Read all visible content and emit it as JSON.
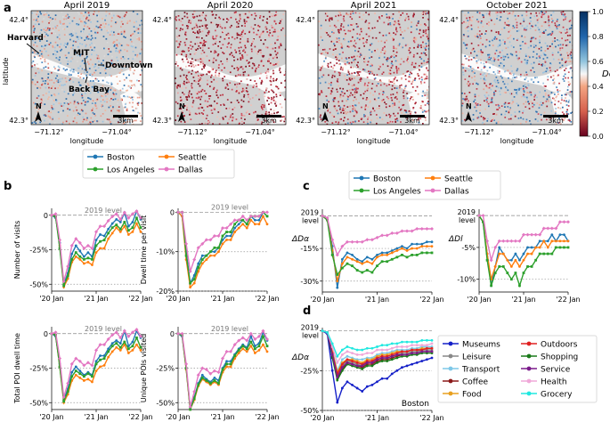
{
  "panel_letters": {
    "a": "a",
    "b": "b",
    "c": "c",
    "d": "d"
  },
  "maps": {
    "titles": [
      "April 2019",
      "April 2020",
      "April 2021",
      "October 2021"
    ],
    "lat_ticks": [
      "42.4°",
      "42.3°"
    ],
    "lon_ticks": [
      "−71.12°",
      "−71.04°"
    ],
    "xlabel": "longitude",
    "ylabel": "latitude",
    "scale_label": "3km",
    "north_label": "N",
    "annotations": {
      "harvard": "Harvard",
      "mit": "MIT",
      "downtown": "Downtown",
      "back_bay": "Back Bay"
    },
    "colorbar": {
      "label": "Dα",
      "ticks": [
        "1.0",
        "0.8",
        "0.6",
        "0.4",
        "0.2",
        "0.0"
      ]
    }
  },
  "colors": {
    "Boston": "#1f77b4",
    "Seattle": "#ff7f0e",
    "Los Angeles": "#2ca02c",
    "Dallas": "#e377c2"
  },
  "legend_b": [
    "Boston",
    "Seattle",
    "Los Angeles",
    "Dallas"
  ],
  "legend_c": [
    "Boston",
    "Seattle",
    "Los Angeles",
    "Dallas"
  ],
  "x_ticks": [
    "'20 Jan",
    "'21 Jan",
    "'22 Jan"
  ],
  "ref_label": "2019 level",
  "chart_data": [
    {
      "id": "b1",
      "type": "line",
      "ylabel": "Number of visits",
      "yticks": [
        "0",
        "-25%",
        "-50%"
      ],
      "ylim": [
        -55,
        5
      ],
      "reference": "2019 level",
      "series": [
        {
          "name": "Boston",
          "values": [
            0,
            -2,
            -20,
            -50,
            -42,
            -28,
            -22,
            -26,
            -30,
            -27,
            -30,
            -18,
            -14,
            -15,
            -10,
            -6,
            -3,
            -5,
            2,
            -8,
            -5,
            3,
            -3
          ]
        },
        {
          "name": "Seattle",
          "values": [
            0,
            -1,
            -22,
            -52,
            -46,
            -34,
            -30,
            -32,
            -35,
            -34,
            -36,
            -27,
            -24,
            -24,
            -17,
            -13,
            -9,
            -12,
            -8,
            -14,
            -12,
            -6,
            -12
          ]
        },
        {
          "name": "Los Angeles",
          "values": [
            0,
            -1,
            -24,
            -51,
            -44,
            -32,
            -27,
            -30,
            -32,
            -31,
            -32,
            -22,
            -19,
            -18,
            -13,
            -9,
            -7,
            -10,
            -5,
            -11,
            -9,
            -2,
            -9
          ]
        },
        {
          "name": "Dallas",
          "values": [
            0,
            1,
            -18,
            -48,
            -37,
            -22,
            -17,
            -20,
            -24,
            -22,
            -24,
            -12,
            -8,
            -8,
            -4,
            -1,
            1,
            -3,
            2,
            -2,
            1,
            3,
            -2
          ]
        }
      ]
    },
    {
      "id": "b2",
      "type": "line",
      "ylabel": "Dwell time per visit",
      "yticks": [
        "0",
        "-10%",
        "-20%"
      ],
      "ylim": [
        -20,
        1
      ],
      "reference": "2019 level",
      "series": [
        {
          "name": "Boston",
          "values": [
            0,
            -1,
            -10,
            -18,
            -16,
            -13,
            -11,
            -11,
            -10,
            -10,
            -9,
            -7,
            -6,
            -6,
            -4,
            -3,
            -2,
            -3,
            -1,
            -2,
            -2,
            0,
            -1
          ]
        },
        {
          "name": "Seattle",
          "values": [
            0,
            -1,
            -12,
            -19,
            -18,
            -15,
            -13,
            -12,
            -11,
            -11,
            -10,
            -8,
            -7,
            -7,
            -5,
            -4,
            -3,
            -4,
            -2,
            -3,
            -3,
            -1,
            -3
          ]
        },
        {
          "name": "Los Angeles",
          "values": [
            0,
            0,
            -11,
            -18,
            -17,
            -14,
            -12,
            -11,
            -10,
            -9,
            -9,
            -6,
            -5,
            -5,
            -3,
            -2,
            -2,
            -3,
            -1,
            -1,
            -1,
            0,
            -1
          ]
        },
        {
          "name": "Dallas",
          "values": [
            0,
            0,
            -8,
            -15,
            -12,
            -9,
            -8,
            -7,
            -7,
            -6,
            -6,
            -4,
            -4,
            -3,
            -2,
            -2,
            -1,
            -2,
            -1,
            -1,
            -1,
            0,
            0
          ]
        }
      ]
    },
    {
      "id": "b3",
      "type": "line",
      "ylabel": "Total POI dwell time",
      "yticks": [
        "0",
        "-25%",
        "-50%"
      ],
      "ylim": [
        -55,
        5
      ],
      "reference": "2019 level",
      "series": [
        {
          "name": "Boston",
          "values": [
            0,
            -2,
            -22,
            -48,
            -40,
            -28,
            -24,
            -27,
            -30,
            -28,
            -30,
            -20,
            -16,
            -16,
            -11,
            -7,
            -5,
            -7,
            2,
            -9,
            -6,
            2,
            -3
          ]
        },
        {
          "name": "Seattle",
          "values": [
            0,
            -1,
            -24,
            -50,
            -44,
            -34,
            -30,
            -32,
            -34,
            -33,
            -35,
            -27,
            -24,
            -23,
            -17,
            -13,
            -10,
            -12,
            -8,
            -14,
            -12,
            -8,
            -12
          ]
        },
        {
          "name": "Los Angeles",
          "values": [
            0,
            -1,
            -24,
            -49,
            -42,
            -31,
            -27,
            -29,
            -31,
            -29,
            -31,
            -22,
            -19,
            -18,
            -13,
            -9,
            -7,
            -10,
            -6,
            -11,
            -9,
            -3,
            -10
          ]
        },
        {
          "name": "Dallas",
          "values": [
            0,
            1,
            -18,
            -46,
            -36,
            -22,
            -18,
            -20,
            -23,
            -21,
            -23,
            -12,
            -8,
            -8,
            -4,
            -1,
            1,
            -3,
            2,
            -2,
            1,
            3,
            -2
          ]
        }
      ]
    },
    {
      "id": "b4",
      "type": "line",
      "ylabel": "Unique POIs visited",
      "yticks": [
        "0",
        "-25%",
        "-50%"
      ],
      "ylim": [
        -55,
        5
      ],
      "reference": "2019 level",
      "series": [
        {
          "name": "Boston",
          "values": [
            0,
            -2,
            -25,
            -54,
            -46,
            -36,
            -30,
            -33,
            -35,
            -32,
            -34,
            -25,
            -20,
            -20,
            -15,
            -11,
            -8,
            -10,
            -2,
            -9,
            -7,
            1,
            -5
          ]
        },
        {
          "name": "Seattle",
          "values": [
            0,
            -1,
            -26,
            -55,
            -48,
            -38,
            -33,
            -35,
            -37,
            -35,
            -37,
            -28,
            -24,
            -24,
            -18,
            -14,
            -11,
            -13,
            -9,
            -14,
            -12,
            -8,
            -13
          ]
        },
        {
          "name": "Los Angeles",
          "values": [
            0,
            -1,
            -25,
            -55,
            -47,
            -37,
            -32,
            -34,
            -36,
            -34,
            -36,
            -26,
            -22,
            -22,
            -16,
            -12,
            -9,
            -11,
            -6,
            -11,
            -9,
            -2,
            -9
          ]
        },
        {
          "name": "Dallas",
          "values": [
            0,
            0,
            -22,
            -53,
            -42,
            -30,
            -25,
            -26,
            -29,
            -27,
            -28,
            -18,
            -13,
            -13,
            -8,
            -5,
            -3,
            -5,
            0,
            -4,
            -2,
            2,
            -4
          ]
        }
      ]
    },
    {
      "id": "c1",
      "type": "line",
      "ylabel": "ΔDα",
      "yticks": [
        "2019 level",
        "-15%",
        "-30%"
      ],
      "ylim": [
        -35,
        3
      ],
      "reference": "2019 level",
      "series": [
        {
          "name": "Boston",
          "values": [
            0,
            -2,
            -14,
            -33,
            -20,
            -17,
            -18,
            -20,
            -21,
            -19,
            -20,
            -18,
            -17,
            -17,
            -16,
            -15,
            -14,
            -15,
            -13,
            -13,
            -13,
            -12,
            -12
          ]
        },
        {
          "name": "Seattle",
          "values": [
            0,
            -2,
            -16,
            -30,
            -22,
            -19,
            -20,
            -21,
            -22,
            -21,
            -22,
            -19,
            -18,
            -18,
            -17,
            -16,
            -15,
            -16,
            -15,
            -15,
            -14,
            -14,
            -14
          ]
        },
        {
          "name": "Los Angeles",
          "values": [
            0,
            -2,
            -18,
            -27,
            -24,
            -22,
            -23,
            -25,
            -26,
            -25,
            -26,
            -23,
            -21,
            -21,
            -20,
            -19,
            -18,
            -19,
            -18,
            -18,
            -17,
            -17,
            -17
          ]
        },
        {
          "name": "Dallas",
          "values": [
            0,
            -1,
            -11,
            -18,
            -14,
            -12,
            -12,
            -12,
            -12,
            -11,
            -11,
            -10,
            -9,
            -9,
            -8,
            -8,
            -7,
            -7,
            -7,
            -6,
            -6,
            -6,
            -6
          ]
        }
      ]
    },
    {
      "id": "c2",
      "type": "line",
      "ylabel": "ΔDl",
      "yticks": [
        "2019 level",
        "-5%",
        "-10%"
      ],
      "ylim": [
        -12,
        1
      ],
      "reference": "2019 level",
      "series": [
        {
          "name": "Boston",
          "values": [
            0,
            -1,
            -6,
            -11,
            -8,
            -5,
            -6,
            -7,
            -7,
            -6,
            -7,
            -6,
            -5,
            -5,
            -5,
            -4,
            -4,
            -4,
            -3,
            -4,
            -3,
            -3,
            -4
          ]
        },
        {
          "name": "Seattle",
          "values": [
            0,
            -1,
            -6,
            -10,
            -8,
            -6,
            -6,
            -7,
            -8,
            -7,
            -8,
            -7,
            -6,
            -6,
            -5,
            -5,
            -4,
            -5,
            -4,
            -4,
            -4,
            -4,
            -4
          ]
        },
        {
          "name": "Los Angeles",
          "values": [
            0,
            -1,
            -7,
            -11,
            -9,
            -8,
            -8,
            -9,
            -10,
            -9,
            -11,
            -9,
            -8,
            -8,
            -7,
            -6,
            -6,
            -6,
            -6,
            -5,
            -5,
            -5,
            -5
          ]
        },
        {
          "name": "Dallas",
          "values": [
            0,
            0,
            -4,
            -7,
            -5,
            -4,
            -4,
            -4,
            -4,
            -4,
            -4,
            -3,
            -3,
            -3,
            -3,
            -3,
            -2,
            -2,
            -2,
            -2,
            -1,
            -1,
            -1
          ]
        }
      ]
    },
    {
      "id": "d",
      "type": "line",
      "ylabel": "ΔDα",
      "yticks": [
        "2019 level",
        "-25%",
        "-50%"
      ],
      "ylim": [
        -50,
        2
      ],
      "reference": "2019 level",
      "annotation": "Boston",
      "series": [
        {
          "name": "Museums",
          "color": "#1520c8",
          "values": [
            0,
            -2,
            -25,
            -45,
            -36,
            -32,
            -34,
            -36,
            -38,
            -35,
            -34,
            -32,
            -30,
            -30,
            -27,
            -25,
            -23,
            -22,
            -21,
            -20,
            -19,
            -18,
            -17
          ]
        },
        {
          "name": "Leisure",
          "color": "#888888",
          "values": [
            0,
            -1,
            -15,
            -28,
            -22,
            -19,
            -20,
            -21,
            -22,
            -20,
            -20,
            -18,
            -17,
            -17,
            -16,
            -15,
            -14,
            -14,
            -13,
            -13,
            -12,
            -12,
            -12
          ]
        },
        {
          "name": "Transport",
          "color": "#7ec8e8",
          "values": [
            0,
            -1,
            -12,
            -25,
            -18,
            -16,
            -17,
            -18,
            -18,
            -17,
            -17,
            -15,
            -14,
            -14,
            -13,
            -12,
            -12,
            -12,
            -11,
            -11,
            -10,
            -10,
            -10
          ]
        },
        {
          "name": "Coffee",
          "color": "#8b1a1a",
          "values": [
            0,
            -1,
            -16,
            -30,
            -24,
            -20,
            -21,
            -22,
            -23,
            -21,
            -21,
            -19,
            -18,
            -18,
            -17,
            -16,
            -15,
            -15,
            -14,
            -14,
            -13,
            -13,
            -13
          ]
        },
        {
          "name": "Food",
          "color": "#e8a020",
          "values": [
            0,
            -1,
            -13,
            -26,
            -20,
            -18,
            -18,
            -19,
            -20,
            -18,
            -18,
            -16,
            -15,
            -15,
            -14,
            -13,
            -13,
            -13,
            -12,
            -12,
            -11,
            -11,
            -11
          ]
        },
        {
          "name": "Outdoors",
          "color": "#e02020",
          "values": [
            0,
            -1,
            -14,
            -27,
            -21,
            -18,
            -19,
            -20,
            -21,
            -19,
            -19,
            -17,
            -16,
            -16,
            -15,
            -14,
            -13,
            -13,
            -12,
            -12,
            -12,
            -11,
            -11
          ]
        },
        {
          "name": "Shopping",
          "color": "#1a7a1a",
          "values": [
            0,
            -1,
            -17,
            -31,
            -25,
            -21,
            -22,
            -23,
            -24,
            -22,
            -22,
            -20,
            -19,
            -19,
            -18,
            -17,
            -16,
            -16,
            -15,
            -15,
            -14,
            -14,
            -14
          ]
        },
        {
          "name": "Service",
          "color": "#7a1a8a",
          "values": [
            0,
            -1,
            -15,
            -29,
            -23,
            -20,
            -21,
            -22,
            -22,
            -20,
            -20,
            -18,
            -17,
            -17,
            -16,
            -15,
            -15,
            -15,
            -14,
            -14,
            -13,
            -13,
            -13
          ]
        },
        {
          "name": "Health",
          "color": "#f0a8d8",
          "values": [
            0,
            -1,
            -10,
            -20,
            -15,
            -13,
            -14,
            -15,
            -15,
            -14,
            -14,
            -12,
            -12,
            -12,
            -11,
            -10,
            -10,
            -10,
            -9,
            -9,
            -9,
            -9,
            -8
          ]
        },
        {
          "name": "Grocery",
          "color": "#20e8e0",
          "values": [
            0,
            -1,
            -8,
            -16,
            -12,
            -10,
            -11,
            -12,
            -12,
            -11,
            -11,
            -10,
            -9,
            -9,
            -8,
            -8,
            -7,
            -7,
            -7,
            -7,
            -6,
            -6,
            -6
          ]
        }
      ]
    }
  ]
}
